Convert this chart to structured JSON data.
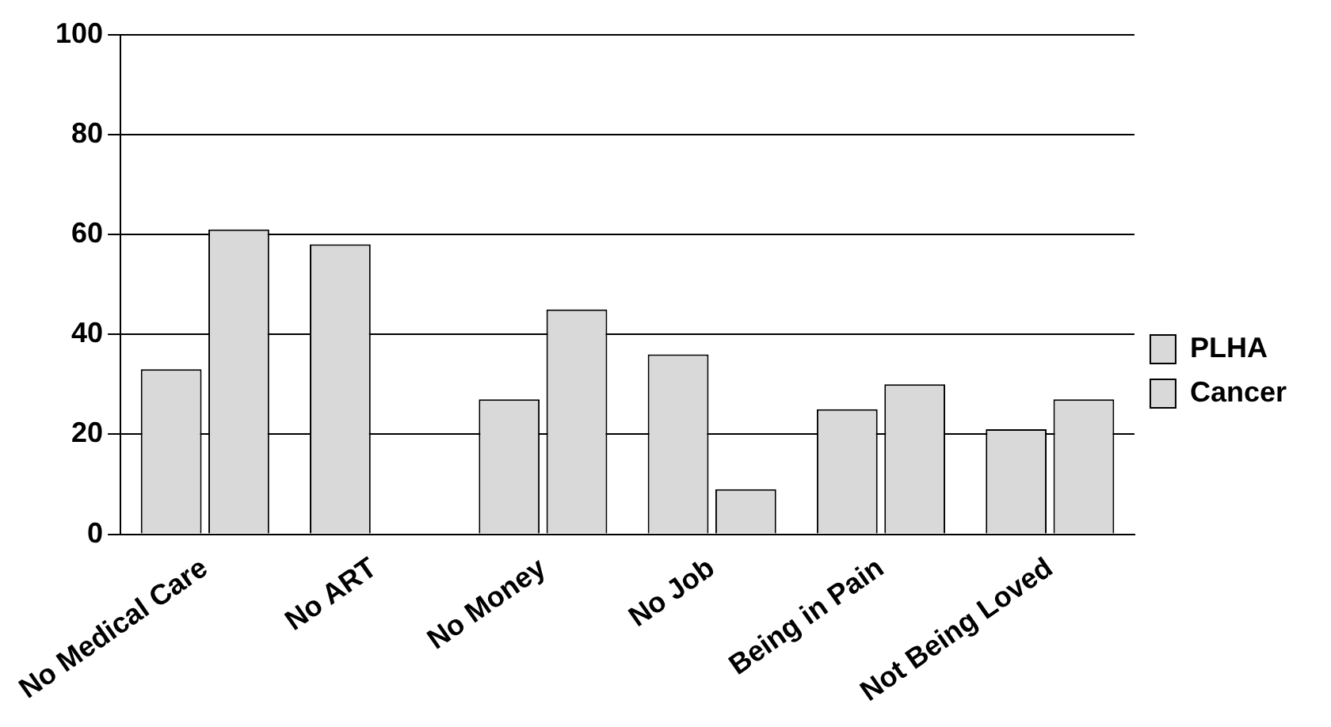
{
  "chart_data": {
    "type": "bar",
    "categories": [
      "No Medical Care",
      "No ART",
      "No Money",
      "No Job",
      "Being in Pain",
      "Not Being Loved"
    ],
    "series": [
      {
        "name": "PLHA",
        "color": "#d9d9d9",
        "values": [
          33,
          58,
          27,
          36,
          25,
          21
        ]
      },
      {
        "name": "Cancer",
        "color": "#d9d9d9",
        "values": [
          61,
          0,
          45,
          9,
          30,
          27
        ]
      }
    ],
    "ylim": [
      0,
      100
    ],
    "yticks": [
      0,
      20,
      40,
      60,
      80,
      100
    ],
    "grid": "y",
    "legend": "right"
  }
}
